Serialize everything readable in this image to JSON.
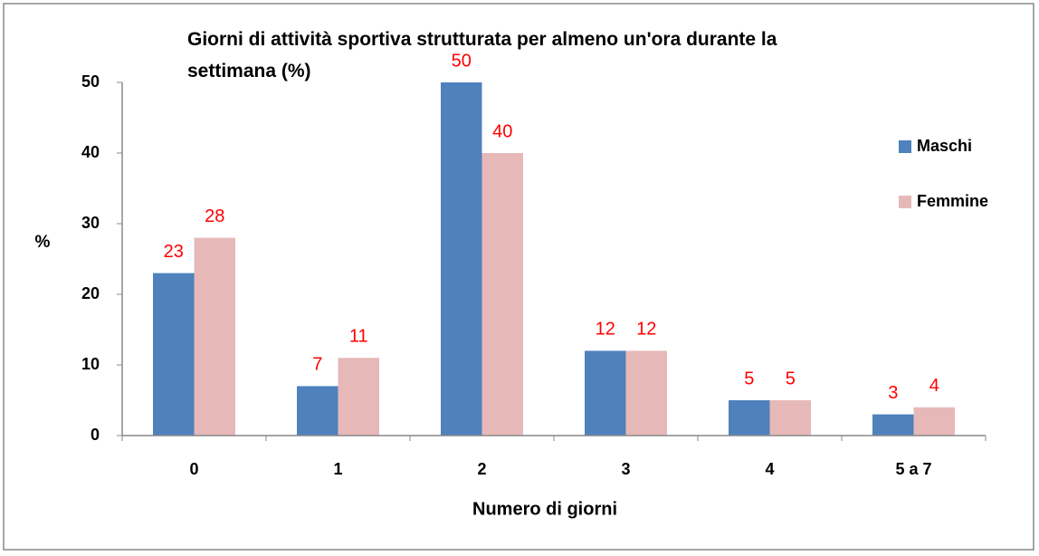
{
  "chart_data": {
    "type": "bar",
    "title": "Giorni di attività sportiva strutturata per almeno un'ora durante la settimana (%)",
    "xlabel": "Numero di giorni",
    "ylabel": "%",
    "categories": [
      "0",
      "1",
      "2",
      "3",
      "4",
      "5 a 7"
    ],
    "series": [
      {
        "name": "Maschi",
        "color": "#4f81bd",
        "values": [
          23,
          7,
          50,
          12,
          5,
          3
        ]
      },
      {
        "name": "Femmine",
        "color": "#e6b9b8",
        "values": [
          28,
          11,
          40,
          12,
          5,
          4
        ]
      }
    ],
    "ylim": [
      0,
      50
    ],
    "yticks": [
      0,
      10,
      20,
      30,
      40,
      50
    ],
    "grid": false,
    "legend": "right",
    "value_label_color": "#ff0000"
  }
}
